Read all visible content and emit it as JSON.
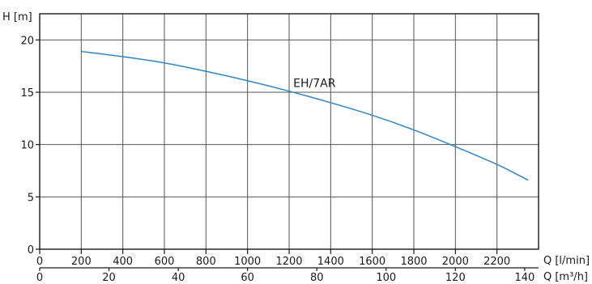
{
  "chart_data": {
    "type": "line",
    "ylabel": "H [m]",
    "xlabel": "Q [l/min]",
    "xlabel2": "Q [m³/h]",
    "xlim": [
      0,
      2400
    ],
    "ylim": [
      0,
      22.5
    ],
    "x_ticks": [
      0,
      200,
      400,
      600,
      800,
      1000,
      1200,
      1400,
      1600,
      1800,
      2000,
      2200
    ],
    "x_tick_labels": [
      "0",
      "200",
      "400",
      "600",
      "800",
      "1000",
      "1200",
      "1400",
      "1600",
      "1800",
      "2000",
      "2200"
    ],
    "x2_ticks": [
      0,
      20,
      40,
      60,
      80,
      100,
      120,
      140
    ],
    "x2_tick_labels": [
      "0",
      "20",
      "40",
      "60",
      "80",
      "100",
      "120",
      "140"
    ],
    "y_ticks": [
      0,
      5,
      10,
      15,
      20
    ],
    "y_tick_labels": [
      "0",
      "5",
      "10",
      "15",
      "20"
    ],
    "grid": true,
    "series": [
      {
        "name": "EH/7AR",
        "color": "#2f86c6",
        "x": [
          200,
          400,
          600,
          800,
          1000,
          1200,
          1400,
          1600,
          1800,
          2000,
          2200,
          2350
        ],
        "y": [
          18.9,
          18.4,
          17.8,
          17.0,
          16.1,
          15.1,
          14.0,
          12.8,
          11.4,
          9.8,
          8.1,
          6.6
        ]
      }
    ],
    "annotations": [
      {
        "text": "EH/7AR",
        "x": 1220,
        "y": 15.5
      }
    ]
  }
}
